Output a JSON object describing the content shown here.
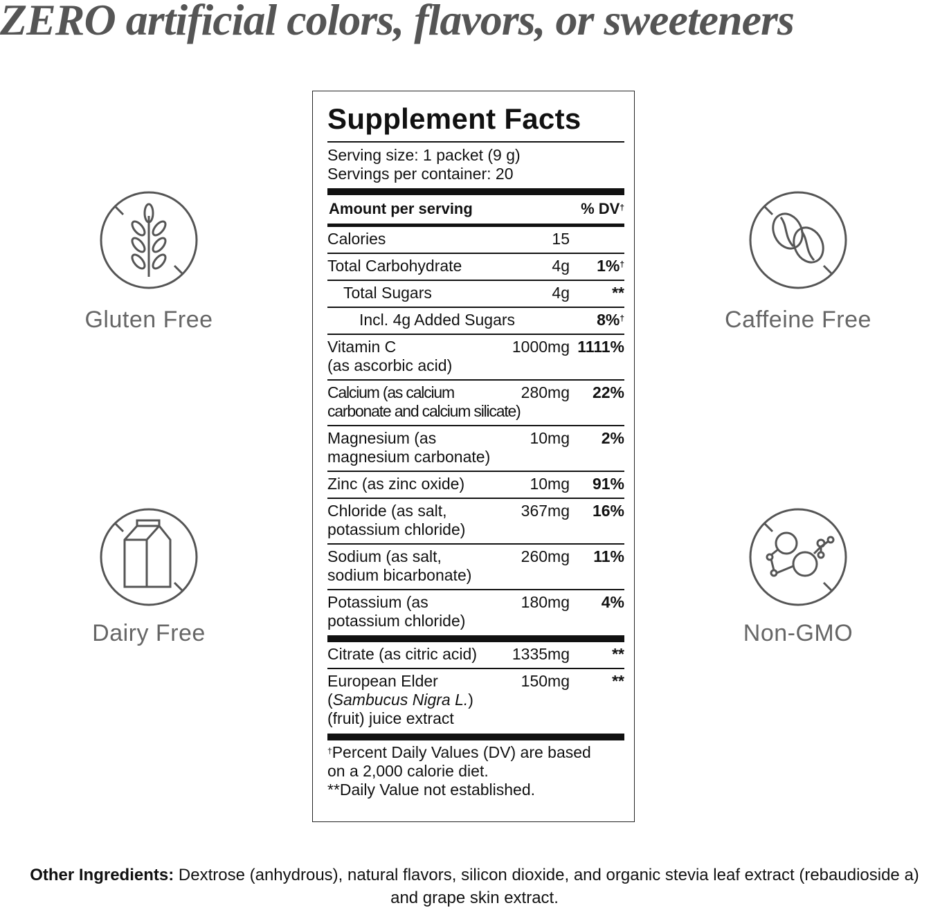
{
  "header": {
    "title": "ZERO artificial colors, flavors, or sweeteners"
  },
  "badges": [
    {
      "label": "Gluten Free"
    },
    {
      "label": "Caffeine Free"
    },
    {
      "label": "Dairy Free"
    },
    {
      "label": "Non-GMO"
    }
  ],
  "facts": {
    "title": "Supplement Facts",
    "serving_size": "Serving size: 1 packet (9 g)",
    "servings_per_container": "Servings per container: 20",
    "amount_label": "Amount per serving",
    "dv_label": "% DV",
    "dv_mark": "†",
    "rows": [
      {
        "name": [
          "Calories"
        ],
        "amount": "15"
      },
      {
        "name": [
          "Total Carbohydrate"
        ],
        "amount": "4g",
        "dv": "1%",
        "dv_mark": "†"
      },
      {
        "name": [
          "Total Sugars"
        ],
        "amount": "4g",
        "dv": "**"
      },
      {
        "name": [
          "Incl. 4g Added Sugars"
        ],
        "dv": "8%",
        "dv_mark": "†"
      },
      {
        "name": [
          "Vitamin C",
          "(as ascorbic acid)"
        ],
        "amount": "1000mg",
        "dv": "1111%"
      },
      {
        "name": [
          "Calcium (as calcium",
          "carbonate and calcium silicate)"
        ],
        "amount": "280mg",
        "dv": "22%"
      },
      {
        "name": [
          "Magnesium (as",
          "magnesium carbonate)"
        ],
        "amount": "10mg",
        "dv": "2%"
      },
      {
        "name": [
          "Zinc (as zinc oxide)"
        ],
        "amount": "10mg",
        "dv": "91%"
      },
      {
        "name": [
          "Chloride (as salt,",
          "potassium chloride)"
        ],
        "amount": "367mg",
        "dv": "16%"
      },
      {
        "name": [
          "Sodium (as salt,",
          "sodium bicarbonate)"
        ],
        "amount": "260mg",
        "dv": "11%"
      },
      {
        "name": [
          "Potassium (as",
          "potassium chloride)"
        ],
        "amount": "180mg",
        "dv": "4%"
      }
    ],
    "other_rows": [
      {
        "name": [
          "Citrate (as citric acid)"
        ],
        "amount": "1335mg",
        "dv": "**"
      },
      {
        "name": [
          "European Elder",
          [
            "(",
            "Sambucus Nigra L.",
            ")"
          ],
          "(fruit) juice extract"
        ],
        "amount": "150mg",
        "dv": "**"
      }
    ],
    "footnote_mark": "†",
    "footnotes": [
      "Percent Daily Values (DV) are based",
      "on a 2,000 calorie diet.",
      "**Daily Value not established."
    ]
  },
  "other_ingredients": {
    "label": "Other Ingredients:",
    "text": "Dextrose (anhydrous), natural flavors, silicon dioxide, and organic stevia leaf extract (rebaudioside a) and grape skin extract."
  }
}
